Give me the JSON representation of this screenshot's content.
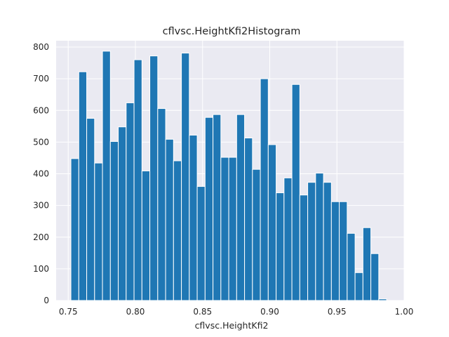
{
  "chart_data": {
    "type": "bar",
    "title": "cflvsc.HeightKfi2Histogram",
    "xlabel": "cflvsc.HeightKfi2",
    "ylabel": "",
    "xlim": [
      0.741,
      1.0
    ],
    "ylim": [
      0,
      820
    ],
    "xticks": [
      "0.75",
      "0.80",
      "0.85",
      "0.90",
      "0.95",
      "1.00"
    ],
    "yticks": [
      "0",
      "100",
      "200",
      "300",
      "400",
      "500",
      "600",
      "700",
      "800"
    ],
    "grid": true,
    "bin_start": 0.752,
    "bin_width": 0.005875,
    "values": [
      448,
      722,
      575,
      434,
      787,
      502,
      548,
      624,
      760,
      409,
      772,
      606,
      509,
      441,
      781,
      522,
      360,
      578,
      587,
      452,
      452,
      587,
      513,
      414,
      700,
      492,
      340,
      387,
      682,
      333,
      373,
      402,
      373,
      312,
      312,
      212,
      88,
      230,
      148,
      5
    ]
  }
}
